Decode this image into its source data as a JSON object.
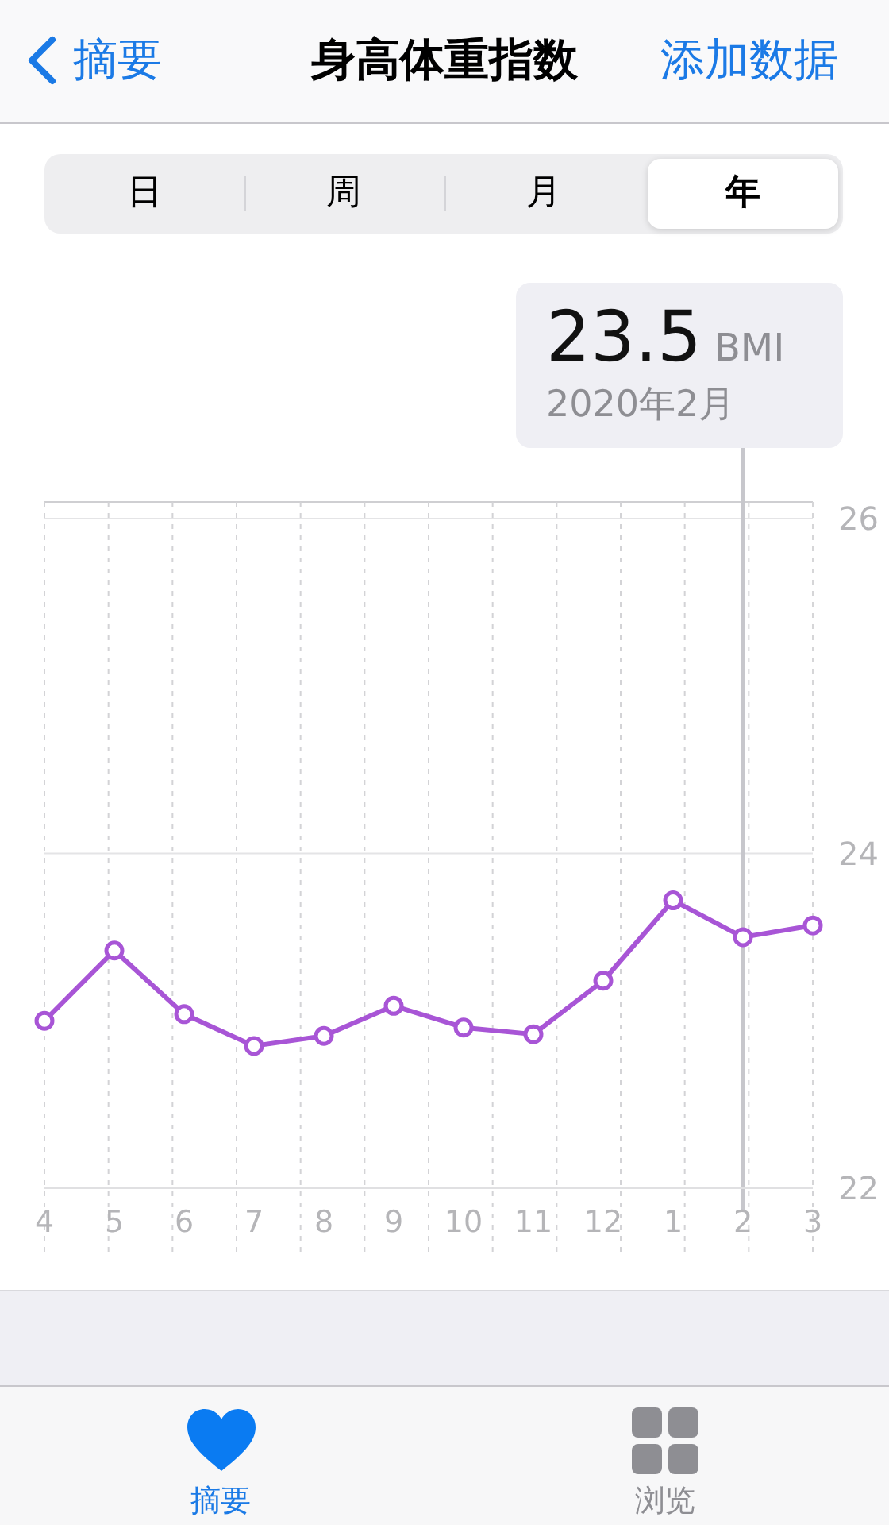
{
  "chart_data": {
    "type": "line",
    "title": "身高体重指数",
    "categories": [
      "4",
      "5",
      "6",
      "7",
      "8",
      "9",
      "10",
      "11",
      "12",
      "1",
      "2",
      "3"
    ],
    "series": [
      {
        "color": "#a855d6",
        "values": [
          23.0,
          23.42,
          23.04,
          22.85,
          22.91,
          23.09,
          22.96,
          22.92,
          23.24,
          23.72,
          23.5,
          23.57
        ]
      }
    ],
    "ylim": [
      22,
      26.1
    ],
    "yticks": [
      22,
      24,
      26
    ],
    "grid": true,
    "marker": "circle",
    "line_style": "solid",
    "ref_lines": [
      {
        "axis": "x",
        "value": "2",
        "color": "#c7c7cc"
      }
    ],
    "annotations": [
      "摘要",
      "添加数据",
      "日",
      "周",
      "月",
      "年",
      "23.5 BMI",
      "2020年2月",
      "摘要",
      "浏览"
    ]
  }
}
